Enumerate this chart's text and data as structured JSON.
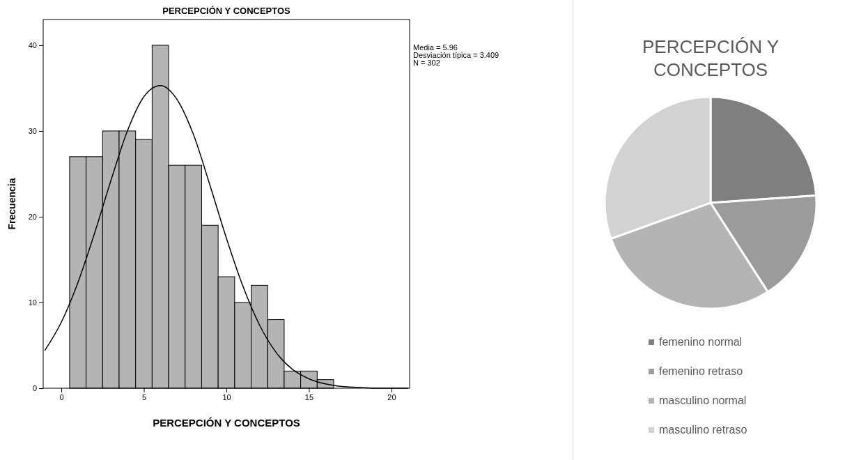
{
  "chart_data": [
    {
      "type": "histogram",
      "title": "PERCEPCIÓN Y CONCEPTOS",
      "xlabel": "PERCEPCIÓN Y CONCEPTOS",
      "ylabel": "Frecuencia",
      "bins": [
        0.5,
        1.5,
        2.5,
        3.5,
        4.5,
        5.5,
        6.5,
        7.5,
        8.5,
        9.5,
        10.5,
        11.5,
        12.5,
        13.5,
        14.5,
        15.5,
        16.5
      ],
      "values": [
        27,
        27,
        30,
        30,
        29,
        40,
        26,
        26,
        19,
        13,
        10,
        12,
        8,
        2,
        2,
        1
      ],
      "color": "#b4b4b4",
      "series": [
        {
          "type": "line",
          "color": "#000000",
          "x": [
            -1,
            0,
            1,
            2,
            3,
            4,
            5,
            6,
            7,
            8,
            9,
            10,
            11,
            12,
            13,
            14,
            15,
            16,
            17,
            18,
            19,
            20,
            21
          ],
          "values": [
            4.4,
            7.7,
            12.3,
            18.0,
            24.2,
            30.0,
            34.0,
            35.3,
            33.7,
            29.6,
            23.7,
            17.5,
            11.9,
            7.4,
            4.2,
            2.2,
            1.1,
            0.5,
            0.2,
            0.1,
            0.0,
            0.0,
            0.0
          ]
        }
      ],
      "xlim": [
        -1.1,
        21.1
      ],
      "xticks": [
        0,
        5,
        10,
        15,
        20
      ],
      "ylim": [
        0,
        43
      ],
      "yticks": [
        0,
        10,
        20,
        30,
        40
      ],
      "grid": false,
      "annotations": [
        "Media = 5.96",
        "Desviación típica = 3.409",
        "N = 302"
      ]
    },
    {
      "type": "pie",
      "title": "PERCEPCIÓN Y CONCEPTOS",
      "categories": [
        "femenino normal",
        "femenino retraso",
        "masculino normal",
        "masculino retraso"
      ],
      "values": [
        23.9,
        17.0,
        28.6,
        30.5
      ],
      "colors": [
        "#7f7f7f",
        "#9b9b9b",
        "#b4b4b4",
        "#d2d2d2"
      ],
      "legend": "bottom"
    }
  ]
}
